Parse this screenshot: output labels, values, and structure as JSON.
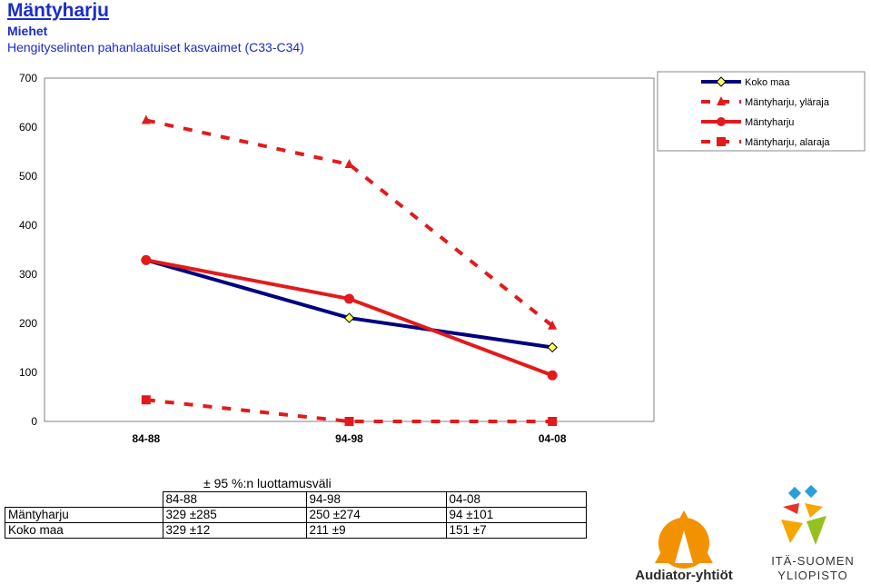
{
  "header": {
    "title": "Mäntyharju",
    "subtitle": "Miehet",
    "description": "Hengityselinten pahanlaatuiset kasvaimet (C33-C34)"
  },
  "chart_data": {
    "type": "line",
    "categories": [
      "84-88",
      "94-98",
      "04-08"
    ],
    "ylim": [
      0,
      700
    ],
    "yticks": [
      0,
      100,
      200,
      300,
      400,
      500,
      600,
      700
    ],
    "series": [
      {
        "name": "Koko maa",
        "values": [
          329,
          211,
          151
        ],
        "color": "#000080",
        "marker": "diamond",
        "dashed": false
      },
      {
        "name": "Mäntyharju, yläraja",
        "values": [
          614,
          524,
          195
        ],
        "color": "#e31a1c",
        "marker": "triangle",
        "dashed": true
      },
      {
        "name": "Mäntyharju",
        "values": [
          329,
          250,
          94
        ],
        "color": "#e31a1c",
        "marker": "circle",
        "dashed": false
      },
      {
        "name": "Mäntyharju, alaraja",
        "values": [
          44,
          0,
          0
        ],
        "color": "#e31a1c",
        "marker": "square",
        "dashed": true
      }
    ],
    "legend_position": "top-right"
  },
  "table": {
    "caption": "± 95 %:n luottamusväli",
    "headers": [
      "84-88",
      "94-98",
      "04-08"
    ],
    "rows": [
      {
        "label": "Mäntyharju",
        "cells": [
          "329 ±285",
          "250 ±274",
          "94 ±101"
        ]
      },
      {
        "label": "Koko maa",
        "cells": [
          "329 ±12",
          "211 ±9",
          "151 ±7"
        ]
      }
    ]
  },
  "logos": {
    "audiator": "Audiator-yhtiöt",
    "uef_line1": "ITÄ-SUOMEN",
    "uef_line2": "YLIOPISTO"
  }
}
